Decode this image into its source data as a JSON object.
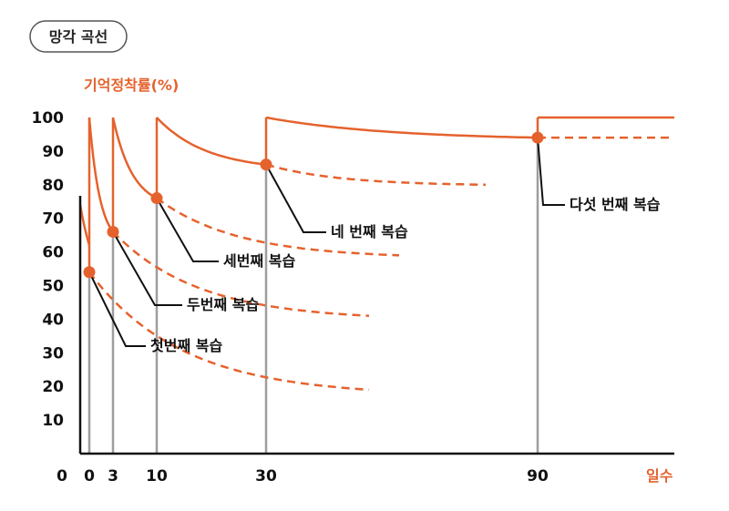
{
  "chart_data": {
    "type": "line",
    "title": "망각 곡선",
    "ylabel": "기억정착률(%)",
    "xlabel": "일수",
    "origin_label": "0",
    "ylim": [
      0,
      100
    ],
    "y_ticks": [
      10,
      20,
      30,
      40,
      50,
      60,
      70,
      80,
      90,
      100
    ],
    "x_ticks": [
      {
        "label": "0",
        "value": 0
      },
      {
        "label": "3",
        "value": 3
      },
      {
        "label": "10",
        "value": 10
      },
      {
        "label": "30",
        "value": 30
      },
      {
        "label": "90",
        "value": 90
      }
    ],
    "grid": false,
    "colors": {
      "curve": "#e5622d",
      "axis": "#111111",
      "guide": "#9e9e9e",
      "leader": "#111111"
    },
    "reviews": [
      {
        "label": "첫번째 복습",
        "day": 0,
        "retention": 54
      },
      {
        "label": "두번째 복습",
        "day": 3,
        "retention": 66
      },
      {
        "label": "세번째 복습",
        "day": 10,
        "retention": 76
      },
      {
        "label": "네 번째 복습",
        "day": 30,
        "retention": 86
      },
      {
        "label": "다섯 번째 복습",
        "day": 90,
        "retention": 94
      }
    ]
  }
}
